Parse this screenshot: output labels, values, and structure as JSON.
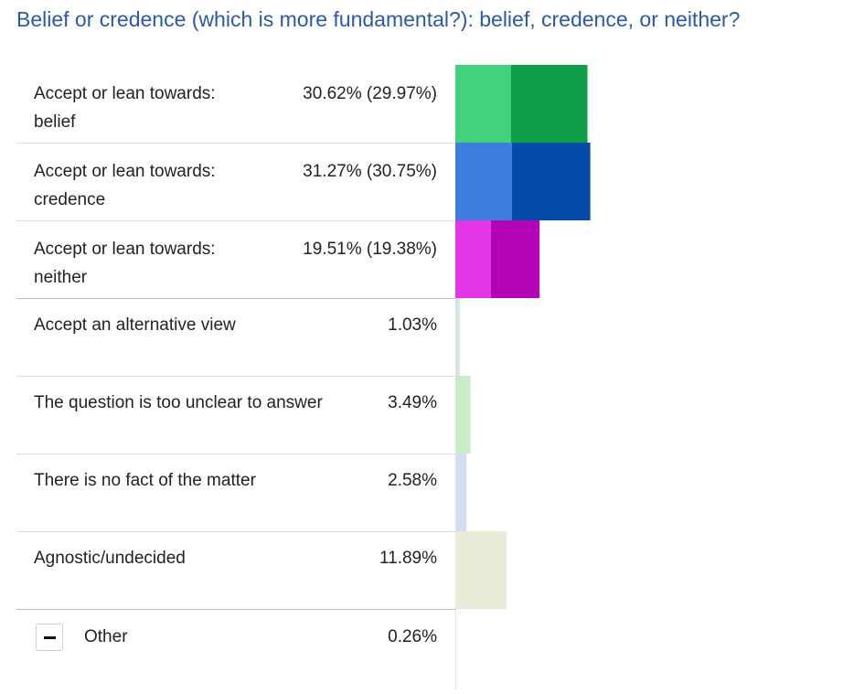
{
  "title": "Belief or credence (which is more fundamental?): belief, credence, or neither?",
  "chart_data": {
    "type": "bar",
    "orientation": "horizontal",
    "title": "Belief or credence (which is more fundamental?): belief, credence, or neither?",
    "rows": [
      {
        "label": "Accept or lean towards: belief",
        "value_text": "30.62% (29.97%)",
        "value": 30.62,
        "accept_value": 29.97,
        "colors": [
          "#42d27c",
          "#0e9e48"
        ]
      },
      {
        "label": "Accept or lean towards: credence",
        "value_text": "31.27% (30.75%)",
        "value": 31.27,
        "accept_value": 30.75,
        "colors": [
          "#3b7edc",
          "#064aa8"
        ]
      },
      {
        "label": "Accept or lean towards: neither",
        "value_text": "19.51% (19.38%)",
        "value": 19.51,
        "accept_value": 19.38,
        "colors": [
          "#e337e6",
          "#b204b4"
        ]
      },
      {
        "label": "Accept an alternative view",
        "value_text": "1.03%",
        "value": 1.03,
        "colors": [
          "#d6e5e4"
        ]
      },
      {
        "label": "The question is too unclear to answer",
        "value_text": "3.49%",
        "value": 3.49,
        "colors": [
          "#c7ecc6"
        ]
      },
      {
        "label": "There is no fact of the matter",
        "value_text": "2.58%",
        "value": 2.58,
        "colors": [
          "#d3def4"
        ]
      },
      {
        "label": "Agnostic/undecided",
        "value_text": "11.89%",
        "value": 11.89,
        "colors": [
          "#ebebd9"
        ]
      },
      {
        "label": "Other",
        "value_text": "0.26%",
        "value": 0.26,
        "colors": [
          "#e6e6e6"
        ]
      }
    ]
  }
}
